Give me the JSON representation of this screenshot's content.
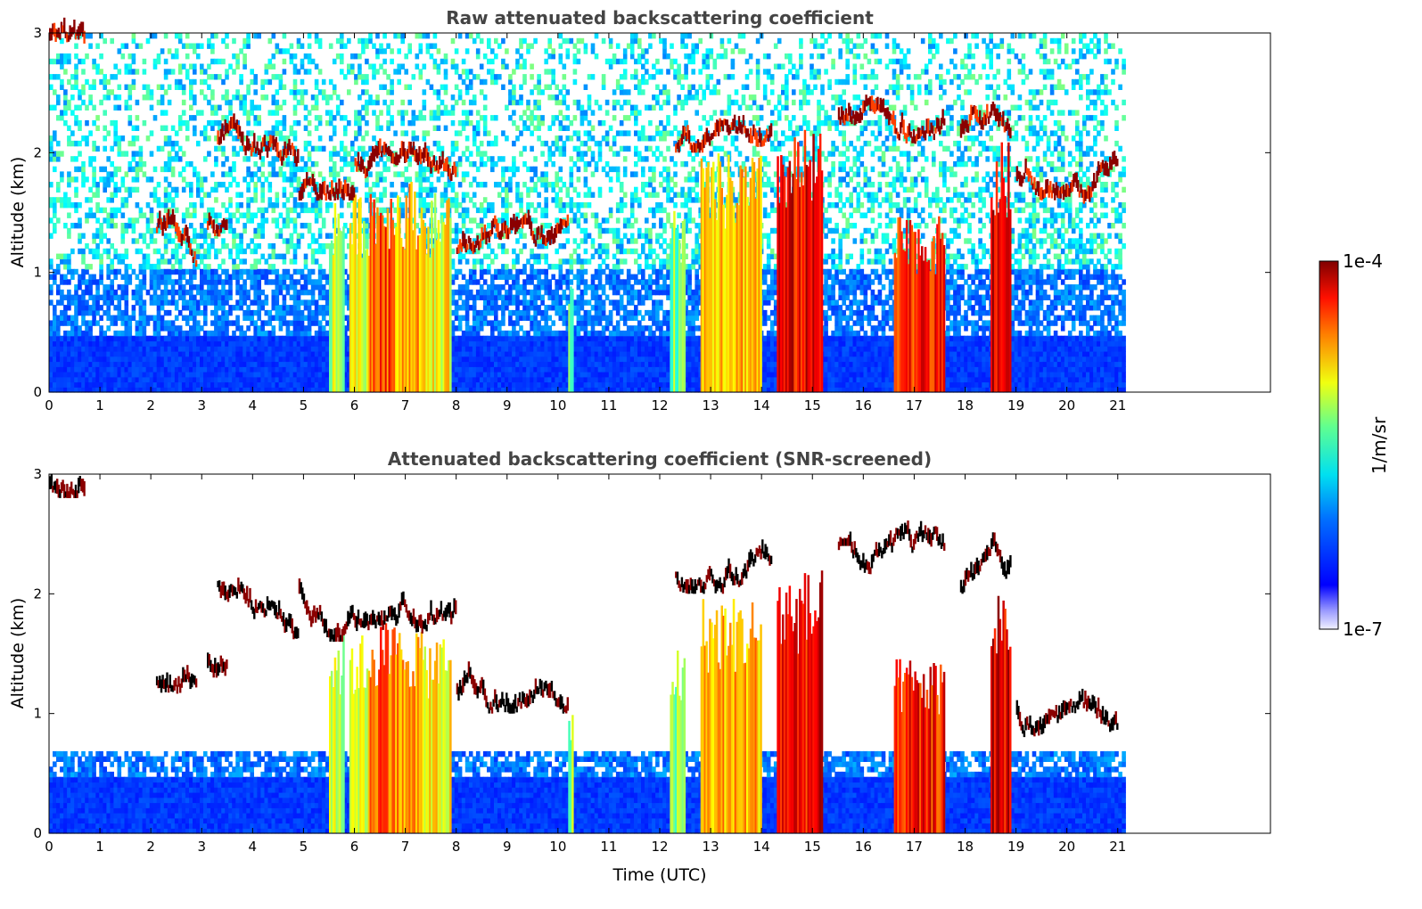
{
  "chart_data": [
    {
      "type": "heatmap",
      "title": "Raw attenuated backscattering coefficient",
      "xlabel": "",
      "ylabel": "Altitude (km)",
      "xlim": [
        0,
        24
      ],
      "ylim": [
        0,
        3
      ],
      "x_ticks": [
        "0",
        "1",
        "2",
        "3",
        "4",
        "5",
        "6",
        "7",
        "8",
        "9",
        "10",
        "11",
        "12",
        "13",
        "14",
        "15",
        "16",
        "17",
        "18",
        "19",
        "20",
        "21"
      ],
      "y_ticks": [
        "0",
        "1",
        "2",
        "3"
      ],
      "data_end_time": 21.15,
      "screened": false
    },
    {
      "type": "heatmap",
      "title": "Attenuated backscattering coefficient (SNR-screened)",
      "xlabel": "Time (UTC)",
      "ylabel": "Altitude (km)",
      "xlim": [
        0,
        24
      ],
      "ylim": [
        0,
        3
      ],
      "x_ticks": [
        "0",
        "1",
        "2",
        "3",
        "4",
        "5",
        "6",
        "7",
        "8",
        "9",
        "10",
        "11",
        "12",
        "13",
        "14",
        "15",
        "16",
        "17",
        "18",
        "19",
        "20",
        "21"
      ],
      "y_ticks": [
        "0",
        "1",
        "2",
        "3"
      ],
      "data_end_time": 21.15,
      "screened": true
    }
  ],
  "colorbar": {
    "scale": "log",
    "max_label": "1e-4",
    "min_label": "1e-7",
    "unit_label": "1/m/sr",
    "colormap": "jet"
  },
  "features": {
    "cloud_layers": [
      {
        "t": [
          0.0,
          0.7
        ],
        "z": [
          2.8,
          3.0
        ]
      },
      {
        "t": [
          2.1,
          2.9
        ],
        "z": [
          1.0,
          1.4
        ]
      },
      {
        "t": [
          3.1,
          3.5
        ],
        "z": [
          1.3,
          1.4
        ]
      },
      {
        "t": [
          3.3,
          4.9
        ],
        "z": [
          1.6,
          2.2
        ]
      },
      {
        "t": [
          4.9,
          6.0
        ],
        "z": [
          1.6,
          2.0
        ]
      },
      {
        "t": [
          6.0,
          8.0
        ],
        "z": [
          1.4,
          2.0
        ]
      },
      {
        "t": [
          8.0,
          10.2
        ],
        "z": [
          1.0,
          1.4
        ]
      },
      {
        "t": [
          12.3,
          14.2
        ],
        "z": [
          2.0,
          2.5
        ]
      },
      {
        "t": [
          15.5,
          16.6
        ],
        "z": [
          2.1,
          2.4
        ]
      },
      {
        "t": [
          16.6,
          17.6
        ],
        "z": [
          1.5,
          2.5
        ]
      },
      {
        "t": [
          17.9,
          18.9
        ],
        "z": [
          2.0,
          2.4
        ]
      },
      {
        "t": [
          19.0,
          21.0
        ],
        "z": [
          0.5,
          2.0
        ]
      }
    ],
    "precipitation_columns": [
      {
        "t": [
          5.5,
          5.8
        ],
        "z_top": 1.6,
        "level": 0.55
      },
      {
        "t": [
          5.9,
          6.3
        ],
        "z_top": 1.6,
        "level": 0.6
      },
      {
        "t": [
          6.3,
          6.8
        ],
        "z_top": 1.7,
        "level": 0.8
      },
      {
        "t": [
          6.8,
          7.3
        ],
        "z_top": 1.7,
        "level": 0.72
      },
      {
        "t": [
          7.3,
          7.9
        ],
        "z_top": 1.6,
        "level": 0.62
      },
      {
        "t": [
          10.2,
          10.3
        ],
        "z_top": 1.0,
        "level": 0.5
      },
      {
        "t": [
          12.2,
          12.5
        ],
        "z_top": 1.5,
        "level": 0.5
      },
      {
        "t": [
          12.8,
          14.0
        ],
        "z_top": 1.9,
        "level": 0.7
      },
      {
        "t": [
          14.3,
          15.2
        ],
        "z_top": 2.1,
        "level": 0.88
      },
      {
        "t": [
          16.6,
          17.6
        ],
        "z_top": 1.4,
        "level": 0.85
      },
      {
        "t": [
          18.5,
          18.9
        ],
        "z_top": 2.0,
        "level": 0.9
      }
    ]
  }
}
